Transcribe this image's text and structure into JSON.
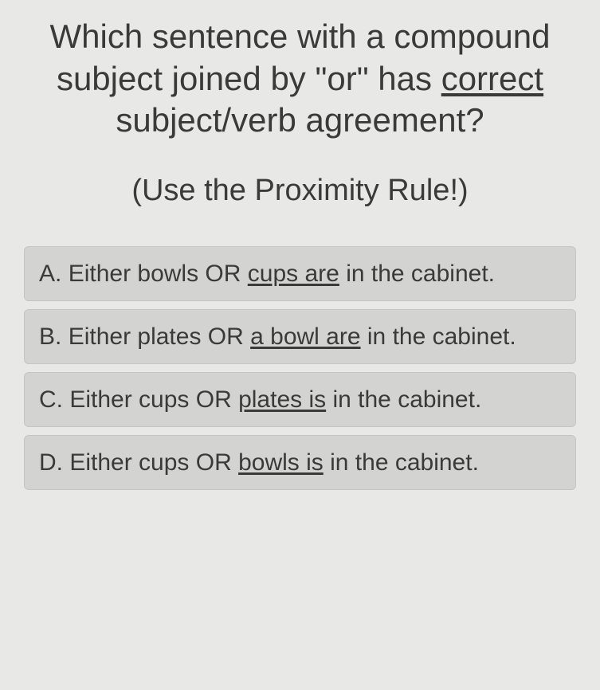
{
  "colors": {
    "page_bg": "#e8e8e6",
    "text": "#3a3a38",
    "option_bg": "#d3d3d1",
    "option_border": "#c5c5c3"
  },
  "typography": {
    "question_fontsize": 42,
    "hint_fontsize": 38,
    "option_fontsize": 30,
    "font_family": "Segoe UI"
  },
  "question": {
    "pre": "Which sentence with a compound subject joined by \"or\" has ",
    "underlined": "correct",
    "post": " subject/verb agreement?"
  },
  "hint": "(Use the Proximity Rule!)",
  "options": [
    {
      "letter": "A.",
      "pre": " Either bowls OR ",
      "underlined": "cups are",
      "post": " in the cabinet."
    },
    {
      "letter": "B.",
      "pre": " Either plates OR ",
      "underlined": "a bowl are",
      "post": " in the cabinet."
    },
    {
      "letter": "C.",
      "pre": " Either cups OR ",
      "underlined": "plates is",
      "post": " in the cabinet."
    },
    {
      "letter": "D.",
      "pre": " Either cups OR ",
      "underlined": "bowls is",
      "post": " in the cabinet."
    }
  ]
}
